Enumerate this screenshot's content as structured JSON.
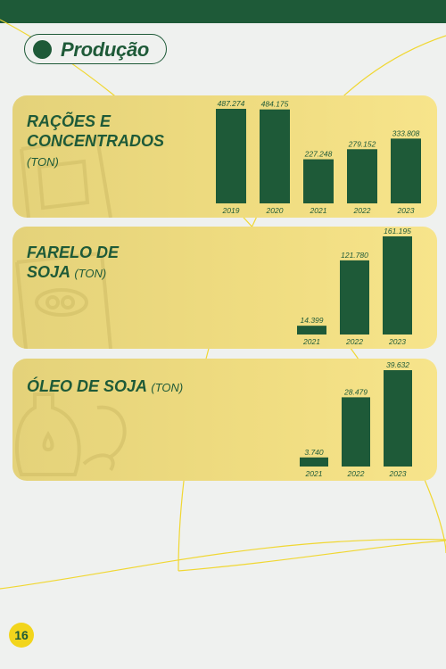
{
  "header": {
    "title": "Produção"
  },
  "page_number": "16",
  "colors": {
    "dark_green": "#1e5a38",
    "bar_green": "#1e5a38",
    "card_yellow": "#efdc80",
    "accent_yellow": "#f2d51c"
  },
  "chart_data": [
    {
      "type": "bar",
      "title": "RAÇÕES E CONCENTRADOS",
      "title_lines": [
        "RAÇÕES E",
        "CONCENTRADOS"
      ],
      "unit": "(TON)",
      "categories": [
        "2019",
        "2020",
        "2021",
        "2022",
        "2023"
      ],
      "values": [
        487274,
        484175,
        227248,
        279152,
        333808
      ],
      "value_labels": [
        "487.274",
        "484.175",
        "227.248",
        "279.152",
        "333.808"
      ]
    },
    {
      "type": "bar",
      "title": "FARELO DE SOJA",
      "title_lines": [
        "FARELO DE",
        "SOJA"
      ],
      "unit": "(TON)",
      "categories": [
        "2021",
        "2022",
        "2023"
      ],
      "values": [
        14399,
        121780,
        161195
      ],
      "value_labels": [
        "14.399",
        "121.780",
        "161.195"
      ]
    },
    {
      "type": "bar",
      "title": "ÓLEO DE SOJA",
      "title_lines": [
        "ÓLEO DE SOJA"
      ],
      "unit": "(TON)",
      "categories": [
        "2021",
        "2022",
        "2023"
      ],
      "values": [
        3740,
        28479,
        39632
      ],
      "value_labels": [
        "3.740",
        "28.479",
        "39.632"
      ]
    }
  ]
}
